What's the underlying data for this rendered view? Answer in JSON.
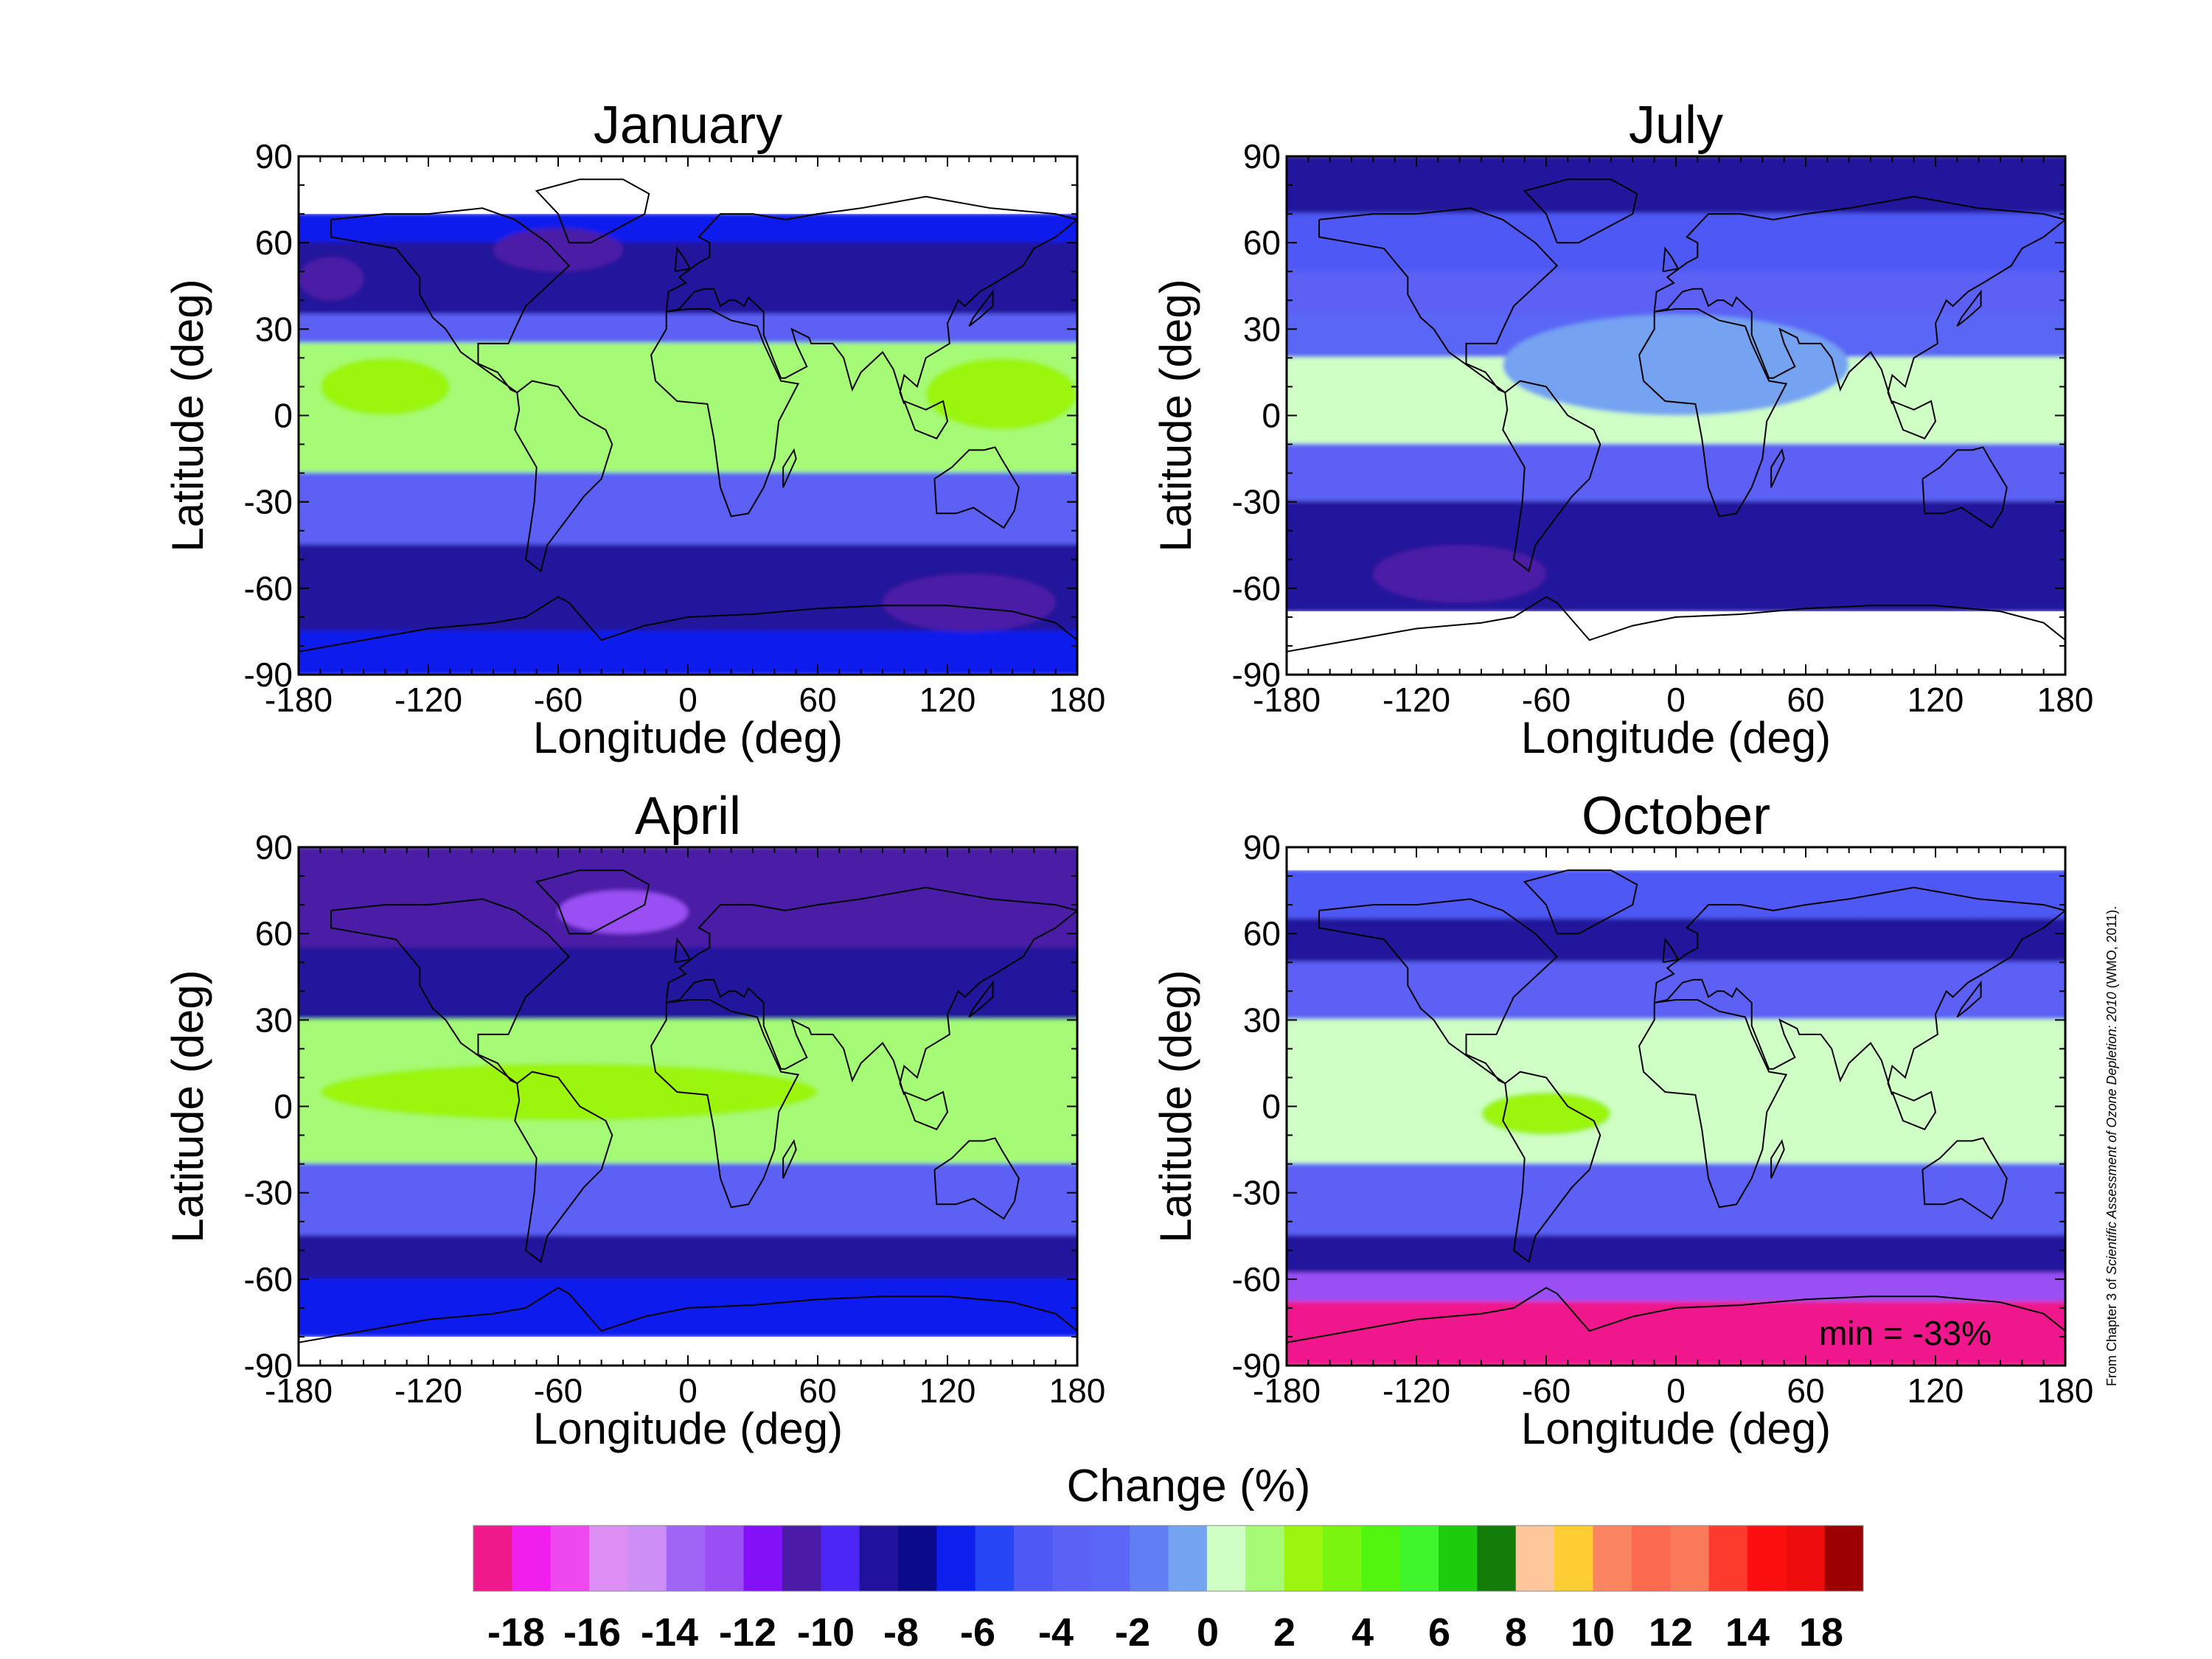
{
  "figure": {
    "credit_prefix": "From Chapter 3 of ",
    "credit_italic": "Scientific Assessment of Ozone Depletion: 2010",
    "credit_suffix": " (WMO, 2011)."
  },
  "axes_labels": {
    "xlabel": "Longitude (deg)",
    "ylabel": "Latitude (deg)",
    "xticks": [
      "-180",
      "-120",
      "-60",
      "0",
      "60",
      "120",
      "180"
    ],
    "yticks": [
      "90",
      "60",
      "30",
      "0",
      "-30",
      "-60",
      "-90"
    ]
  },
  "colorbar": {
    "title": "Change (%)",
    "colors": [
      "#f0198b",
      "#f01fee",
      "#ee48f1",
      "#dc8ef4",
      "#cd8ff6",
      "#a165f5",
      "#9a4ff5",
      "#8410f7",
      "#4b1aa6",
      "#4b26f4",
      "#20129c",
      "#0a0a8a",
      "#0c1fed",
      "#2645f5",
      "#4d58f5",
      "#5b61f5",
      "#5a66f5",
      "#627ef4",
      "#74a3f2",
      "#cfffc4",
      "#a5fb74",
      "#9cf50e",
      "#7af50e",
      "#52f50e",
      "#3ff52b",
      "#1dcc0c",
      "#137d09",
      "#fdc79b",
      "#fdcd33",
      "#fb8560",
      "#fc6a4f",
      "#fb7a5a",
      "#fc3b2c",
      "#fc0f0f",
      "#ee0d0d",
      "#9c0000"
    ],
    "tick_labels": [
      "-18",
      "-16",
      "-14",
      "-12",
      "-10",
      "-8",
      "-6",
      "-4",
      "-2",
      "0",
      "2",
      "4",
      "6",
      "8",
      "10",
      "12",
      "14",
      "18"
    ]
  },
  "chart_data": [
    {
      "type": "heatmap",
      "title": "January",
      "xlabel": "Longitude (deg)",
      "ylabel": "Latitude (deg)",
      "xlim": [
        -180,
        180
      ],
      "ylim": [
        -90,
        90
      ],
      "data_lat_range": [
        -90,
        70
      ],
      "lat_bands": [
        {
          "lat": [
            60,
            70
          ],
          "value": -6
        },
        {
          "lat": [
            35,
            60
          ],
          "value": -8
        },
        {
          "lat": [
            25,
            35
          ],
          "value": -3
        },
        {
          "lat": [
            -20,
            25
          ],
          "value": 3
        },
        {
          "lat": [
            -45,
            -20
          ],
          "value": -3
        },
        {
          "lat": [
            -75,
            -45
          ],
          "value": -8
        },
        {
          "lat": [
            -90,
            -75
          ],
          "value": -6
        }
      ],
      "features": [
        {
          "lon": [
            -180,
            -150
          ],
          "lat": [
            40,
            55
          ],
          "value": -10
        },
        {
          "lon": [
            -90,
            -30
          ],
          "lat": [
            50,
            65
          ],
          "value": -10
        },
        {
          "lon": [
            90,
            170
          ],
          "lat": [
            -75,
            -55
          ],
          "value": -10
        },
        {
          "lon": [
            -170,
            -110
          ],
          "lat": [
            0,
            20
          ],
          "value": 4
        },
        {
          "lon": [
            110,
            180
          ],
          "lat": [
            -5,
            20
          ],
          "value": 4
        }
      ]
    },
    {
      "type": "heatmap",
      "title": "July",
      "xlabel": "Longitude (deg)",
      "ylabel": "Latitude (deg)",
      "xlim": [
        -180,
        180
      ],
      "ylim": [
        -90,
        90
      ],
      "data_lat_range": [
        -68,
        90
      ],
      "lat_bands": [
        {
          "lat": [
            70,
            90
          ],
          "value": -8
        },
        {
          "lat": [
            50,
            70
          ],
          "value": -4
        },
        {
          "lat": [
            35,
            50
          ],
          "value": -3
        },
        {
          "lat": [
            20,
            35
          ],
          "value": -2
        },
        {
          "lat": [
            -10,
            20
          ],
          "value": 2
        },
        {
          "lat": [
            -30,
            -10
          ],
          "value": -3
        },
        {
          "lat": [
            -68,
            -30
          ],
          "value": -8
        }
      ],
      "features": [
        {
          "lon": [
            -80,
            80
          ],
          "lat": [
            0,
            35
          ],
          "value": 0
        },
        {
          "lon": [
            -140,
            -60
          ],
          "lat": [
            -65,
            -45
          ],
          "value": -10
        }
      ]
    },
    {
      "type": "heatmap",
      "title": "April",
      "xlabel": "Longitude (deg)",
      "ylabel": "Latitude (deg)",
      "xlim": [
        -180,
        180
      ],
      "ylim": [
        -90,
        90
      ],
      "data_lat_range": [
        -80,
        90
      ],
      "lat_bands": [
        {
          "lat": [
            55,
            90
          ],
          "value": -10
        },
        {
          "lat": [
            30,
            55
          ],
          "value": -8
        },
        {
          "lat": [
            -20,
            30
          ],
          "value": 3
        },
        {
          "lat": [
            -45,
            -20
          ],
          "value": -3
        },
        {
          "lat": [
            -60,
            -45
          ],
          "value": -8
        },
        {
          "lat": [
            -80,
            -60
          ],
          "value": -6
        }
      ],
      "features": [
        {
          "lon": [
            -60,
            0
          ],
          "lat": [
            60,
            75
          ],
          "value": -12
        },
        {
          "lon": [
            -170,
            60
          ],
          "lat": [
            -5,
            15
          ],
          "value": 4
        }
      ]
    },
    {
      "type": "heatmap",
      "title": "October",
      "xlabel": "Longitude (deg)",
      "ylabel": "Latitude (deg)",
      "xlim": [
        -180,
        180
      ],
      "ylim": [
        -90,
        90
      ],
      "data_lat_range": [
        -90,
        82
      ],
      "annotation": "min = -33%",
      "lat_bands": [
        {
          "lat": [
            65,
            82
          ],
          "value": -4
        },
        {
          "lat": [
            50,
            65
          ],
          "value": -8
        },
        {
          "lat": [
            30,
            50
          ],
          "value": -3
        },
        {
          "lat": [
            -20,
            30
          ],
          "value": 2
        },
        {
          "lat": [
            -45,
            -20
          ],
          "value": -3
        },
        {
          "lat": [
            -58,
            -45
          ],
          "value": -8
        },
        {
          "lat": [
            -68,
            -58
          ],
          "value": -12
        },
        {
          "lat": [
            -90,
            -68
          ],
          "value": -18
        }
      ],
      "features": [
        {
          "lon": [
            -90,
            -30
          ],
          "lat": [
            -10,
            5
          ],
          "value": 4
        }
      ]
    }
  ]
}
